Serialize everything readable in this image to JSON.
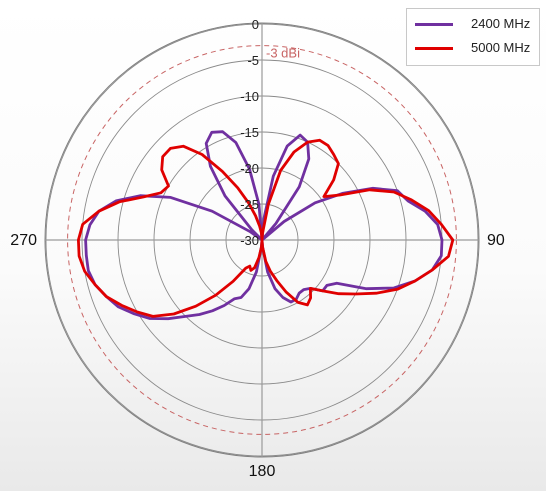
{
  "chart_data": {
    "type": "polar",
    "title": "",
    "radial_axis": {
      "ticks": [
        0,
        -5,
        -10,
        -15,
        -20,
        -25,
        -30
      ],
      "tick_labels": [
        "0",
        "-5",
        "-10",
        "-15",
        "-20",
        "-25",
        "-30"
      ],
      "range": [
        -30,
        0
      ]
    },
    "angular_labels": [
      {
        "angle": 90,
        "label": "90"
      },
      {
        "angle": 180,
        "label": "180"
      },
      {
        "angle": 270,
        "label": "270"
      }
    ],
    "reference": {
      "value": -3,
      "label": "-3 dBi",
      "color": "#c86464"
    },
    "legend_position": "top-right",
    "series": [
      {
        "name": "2400 MHz",
        "color": "#7030a0",
        "points": [
          [
            0,
            -30
          ],
          [
            5,
            -27
          ],
          [
            10,
            -21
          ],
          [
            15,
            -16.5
          ],
          [
            20,
            -14.5
          ],
          [
            25,
            -15
          ],
          [
            30,
            -17
          ],
          [
            35,
            -21
          ],
          [
            40,
            -27
          ],
          [
            45,
            -30
          ],
          [
            50,
            -26
          ],
          [
            55,
            -21
          ],
          [
            60,
            -17
          ],
          [
            65,
            -13
          ],
          [
            70,
            -10
          ],
          [
            75,
            -9
          ],
          [
            80,
            -7
          ],
          [
            85,
            -5.5
          ],
          [
            90,
            -5
          ],
          [
            95,
            -5
          ],
          [
            100,
            -6
          ],
          [
            105,
            -8
          ],
          [
            110,
            -10.5
          ],
          [
            115,
            -14
          ],
          [
            120,
            -18
          ],
          [
            125,
            -19
          ],
          [
            130,
            -19
          ],
          [
            135,
            -20.5
          ],
          [
            140,
            -21
          ],
          [
            145,
            -21
          ],
          [
            150,
            -20.5
          ],
          [
            155,
            -20.5
          ],
          [
            160,
            -21.5
          ],
          [
            165,
            -23
          ],
          [
            170,
            -25.5
          ],
          [
            175,
            -29
          ],
          [
            180,
            -30
          ],
          [
            185,
            -29
          ],
          [
            190,
            -25.5
          ],
          [
            195,
            -23
          ],
          [
            200,
            -21.5
          ],
          [
            205,
            -21
          ],
          [
            210,
            -19.5
          ],
          [
            215,
            -18
          ],
          [
            220,
            -16.5
          ],
          [
            225,
            -15
          ],
          [
            230,
            -13
          ],
          [
            235,
            -11
          ],
          [
            240,
            -9.5
          ],
          [
            245,
            -8
          ],
          [
            250,
            -7
          ],
          [
            255,
            -6
          ],
          [
            260,
            -5.5
          ],
          [
            265,
            -5.5
          ],
          [
            270,
            -5.5
          ],
          [
            275,
            -6
          ],
          [
            280,
            -7
          ],
          [
            285,
            -9
          ],
          [
            290,
            -12
          ],
          [
            295,
            -16
          ],
          [
            300,
            -22
          ],
          [
            305,
            -28
          ],
          [
            310,
            -30
          ],
          [
            315,
            -28
          ],
          [
            320,
            -22
          ],
          [
            325,
            -17.5
          ],
          [
            330,
            -14.5
          ],
          [
            335,
            -13.5
          ],
          [
            340,
            -14
          ],
          [
            345,
            -16
          ],
          [
            350,
            -20
          ],
          [
            355,
            -25
          ],
          [
            360,
            -30
          ]
        ]
      },
      {
        "name": "5000 MHz",
        "color": "#e00000",
        "points": [
          [
            0,
            -30
          ],
          [
            5,
            -29
          ],
          [
            10,
            -25
          ],
          [
            15,
            -20
          ],
          [
            20,
            -17
          ],
          [
            25,
            -15
          ],
          [
            30,
            -14
          ],
          [
            35,
            -14
          ],
          [
            40,
            -14.5
          ],
          [
            45,
            -15
          ],
          [
            50,
            -17
          ],
          [
            55,
            -19.5
          ],
          [
            60,
            -17.5
          ],
          [
            65,
            -13.5
          ],
          [
            70,
            -10.5
          ],
          [
            75,
            -8.5
          ],
          [
            80,
            -6.5
          ],
          [
            85,
            -5
          ],
          [
            90,
            -3.5
          ],
          [
            95,
            -4
          ],
          [
            100,
            -6
          ],
          [
            105,
            -8
          ],
          [
            110,
            -10
          ],
          [
            115,
            -12.5
          ],
          [
            120,
            -15
          ],
          [
            125,
            -17
          ],
          [
            130,
            -19
          ],
          [
            135,
            -20.5
          ],
          [
            140,
            -19.5
          ],
          [
            145,
            -19
          ],
          [
            150,
            -20
          ],
          [
            155,
            -22
          ],
          [
            160,
            -24
          ],
          [
            165,
            -25.5
          ],
          [
            170,
            -27
          ],
          [
            175,
            -29
          ],
          [
            180,
            -30
          ],
          [
            185,
            -29
          ],
          [
            190,
            -27.5
          ],
          [
            195,
            -26
          ],
          [
            200,
            -25.5
          ],
          [
            205,
            -26
          ],
          [
            210,
            -25.5
          ],
          [
            215,
            -23
          ],
          [
            220,
            -20
          ],
          [
            225,
            -17
          ],
          [
            230,
            -14
          ],
          [
            235,
            -11.5
          ],
          [
            240,
            -10
          ],
          [
            245,
            -8.5
          ],
          [
            250,
            -7
          ],
          [
            255,
            -6
          ],
          [
            260,
            -5
          ],
          [
            265,
            -4.5
          ],
          [
            270,
            -4.5
          ],
          [
            275,
            -5
          ],
          [
            280,
            -7
          ],
          [
            285,
            -9.5
          ],
          [
            290,
            -12.5
          ],
          [
            295,
            -14.5
          ],
          [
            300,
            -15
          ],
          [
            305,
            -13
          ],
          [
            310,
            -12
          ],
          [
            315,
            -12
          ],
          [
            320,
            -13
          ],
          [
            325,
            -15.5
          ],
          [
            330,
            -19
          ],
          [
            335,
            -22
          ],
          [
            340,
            -24.5
          ],
          [
            345,
            -26.5
          ],
          [
            350,
            -28
          ],
          [
            355,
            -29
          ],
          [
            360,
            -30
          ]
        ]
      }
    ]
  }
}
